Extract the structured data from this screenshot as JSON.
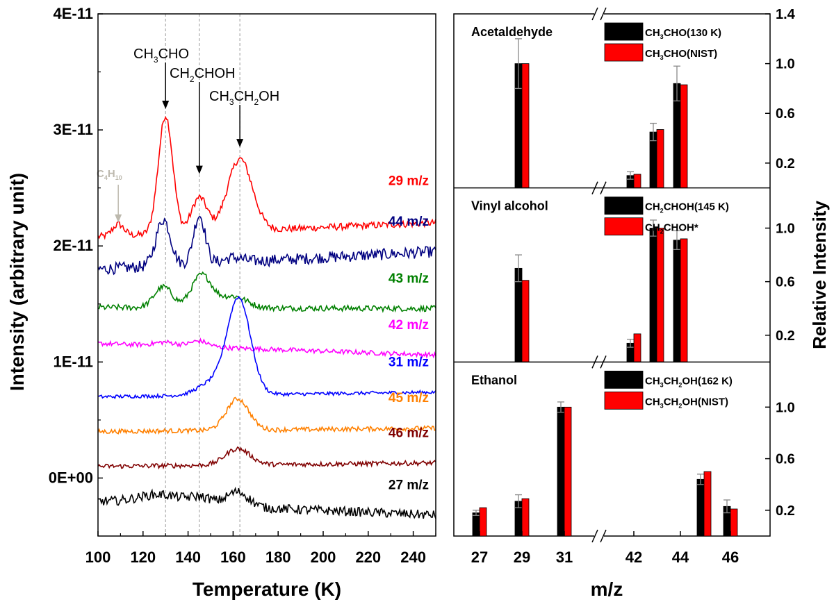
{
  "chart_data": [
    {
      "type": "line",
      "xlabel": "Temperature (K)",
      "ylabel": "Intensity (arbitrary unit)",
      "xlim": [
        100,
        250
      ],
      "ylim": [
        -5e-12,
        4e-11
      ],
      "xticks": [
        100,
        120,
        140,
        160,
        180,
        200,
        220,
        240
      ],
      "xtick_labels": [
        "100",
        "120",
        "140",
        "160",
        "180",
        "200",
        "220",
        "240"
      ],
      "yticks": [
        0,
        1e-11,
        2e-11,
        3e-11,
        4e-11
      ],
      "ytick_labels": [
        "0E+00",
        "1E-11",
        "2E-11",
        "3E-11",
        "4E-11"
      ],
      "reference_lines_x": [
        130,
        145,
        163
      ],
      "annotations": [
        {
          "label": "CH3CHO",
          "parts": [
            [
              "CH",
              "n"
            ],
            [
              "3",
              "sub"
            ],
            [
              "CHO",
              "n"
            ]
          ],
          "x": 130,
          "arrow_to": 3.18e-11,
          "color": "#000000"
        },
        {
          "label": "CH2CHOH",
          "parts": [
            [
              "CH",
              "n"
            ],
            [
              "2",
              "sub"
            ],
            [
              "CHOH",
              "n"
            ]
          ],
          "x": 145,
          "arrow_to": 2.62e-11,
          "color": "#000000"
        },
        {
          "label": "CH3CH2OH",
          "parts": [
            [
              "CH",
              "n"
            ],
            [
              "3",
              "sub"
            ],
            [
              "CH",
              "n"
            ],
            [
              "2",
              "sub"
            ],
            [
              "OH",
              "n"
            ]
          ],
          "x": 163,
          "arrow_to": 2.85e-11,
          "color": "#000000"
        },
        {
          "label": "C4H10",
          "parts": [
            [
              "C",
              "n"
            ],
            [
              "4",
              "sub"
            ],
            [
              "H",
              "n"
            ],
            [
              "10",
              "sub"
            ]
          ],
          "x": 109,
          "arrow_to": 2.2e-11,
          "color": "#bdb9ae"
        }
      ],
      "series": [
        {
          "name": "29 m/z",
          "color": "#ff0000",
          "baseline_start": 2.08e-11,
          "baseline_end": 2.2e-11,
          "noise": 3e-13,
          "peaks": [
            [
              109,
              1e-12,
              2.5
            ],
            [
              130,
              1.02e-11,
              3.2
            ],
            [
              145,
              3e-12,
              3.5
            ],
            [
              163,
              6.2e-12,
              5.5
            ]
          ]
        },
        {
          "name": "44 m/z",
          "color": "#000080",
          "baseline_start": 1.8e-11,
          "baseline_end": 1.95e-11,
          "noise": 5e-13,
          "peaks": [
            [
              129,
              4e-12,
              3.2
            ],
            [
              145,
              4.2e-12,
              2.6
            ],
            [
              160,
              4e-13,
              4
            ]
          ]
        },
        {
          "name": "43 m/z",
          "color": "#008000",
          "baseline_start": 1.47e-11,
          "baseline_end": 1.46e-11,
          "noise": 2.5e-13,
          "peaks": [
            [
              129,
              1.8e-12,
              4
            ],
            [
              146,
              2.8e-12,
              4.5
            ],
            [
              160,
              1e-12,
              6
            ]
          ]
        },
        {
          "name": "42 m/z",
          "color": "#ff00ff",
          "baseline_start": 1.16e-11,
          "baseline_end": 1.06e-11,
          "noise": 2e-13,
          "peaks": [
            [
              130,
              3e-13,
              5
            ],
            [
              145,
              5e-13,
              4
            ]
          ]
        },
        {
          "name": "31 m/z",
          "color": "#0000ff",
          "baseline_start": 7e-12,
          "baseline_end": 7.4e-12,
          "noise": 1.5e-13,
          "peaks": [
            [
              162.5,
              8.3e-12,
              5.2
            ],
            [
              150,
              1e-12,
              6
            ]
          ]
        },
        {
          "name": "45 m/z",
          "color": "#ff8000",
          "baseline_start": 4e-12,
          "baseline_end": 4.3e-12,
          "noise": 2e-13,
          "peaks": [
            [
              162,
              2.7e-12,
              5
            ]
          ]
        },
        {
          "name": "46 m/z",
          "color": "#800000",
          "baseline_start": 1e-12,
          "baseline_end": 1.3e-12,
          "noise": 2e-13,
          "peaks": [
            [
              162,
              1.4e-12,
              5.5
            ]
          ]
        },
        {
          "name": "27 m/z",
          "color": "#000000",
          "baseline_start": -2e-12,
          "baseline_end": -3.2e-12,
          "noise": 4e-13,
          "peaks": [
            [
              128,
              8e-13,
              10
            ],
            [
              146,
              6e-13,
              5
            ],
            [
              162,
              1.3e-12,
              5
            ]
          ]
        }
      ]
    },
    {
      "type": "bar",
      "xlabel": "m/z",
      "ylabel": "Relative Intensity",
      "categories": [
        "27",
        "29",
        "31",
        "42",
        "43",
        "44",
        "45",
        "46"
      ],
      "xtick_labels": [
        "27",
        "29",
        "31",
        "42",
        "44",
        "46"
      ],
      "panels": [
        {
          "title": "Acetaldehyde",
          "ylim": [
            0,
            1.4
          ],
          "yticks": [
            0.2,
            0.6,
            1.0,
            1.4
          ],
          "ytick_labels": [
            "0.2",
            "0.6",
            "1.0",
            "1.4"
          ],
          "series": [
            {
              "name": "CH3CHO(130 K)",
              "parts": [
                [
                  "CH",
                  "n"
                ],
                [
                  "3",
                  "sub"
                ],
                [
                  "CHO(130 K)",
                  "n"
                ]
              ],
              "color": "#000000",
              "values": {
                "29": 1.0,
                "42": 0.1,
                "43": 0.45,
                "44": 0.84
              },
              "errors": {
                "29": 0.2,
                "42": 0.03,
                "43": 0.07,
                "44": 0.14
              }
            },
            {
              "name": "CH3CHO(NIST)",
              "parts": [
                [
                  "CH",
                  "n"
                ],
                [
                  "3",
                  "sub"
                ],
                [
                  "CHO(NIST)",
                  "n"
                ]
              ],
              "color": "#ff0000",
              "values": {
                "29": 1.0,
                "42": 0.11,
                "43": 0.47,
                "44": 0.83
              }
            }
          ]
        },
        {
          "title": "Vinyl alcohol",
          "ylim": [
            0,
            1.3
          ],
          "yticks": [
            0.2,
            0.6,
            1.0
          ],
          "ytick_labels": [
            "0.2",
            "0.6",
            "1.0"
          ],
          "series": [
            {
              "name": "CH2CHOH(145 K)",
              "parts": [
                [
                  "CH",
                  "n"
                ],
                [
                  "2",
                  "sub"
                ],
                [
                  "CHOH(145 K)",
                  "n"
                ]
              ],
              "color": "#000000",
              "values": {
                "29": 0.7,
                "42": 0.14,
                "43": 1.0,
                "44": 0.91
              },
              "errors": {
                "29": 0.1,
                "42": 0.03,
                "43": 0.06,
                "44": 0.07
              }
            },
            {
              "name": "CH2CHOH*",
              "parts": [
                [
                  "CH",
                  "n"
                ],
                [
                  "2",
                  "sub"
                ],
                [
                  "CHOH*",
                  "n"
                ]
              ],
              "color": "#ff0000",
              "values": {
                "29": 0.61,
                "42": 0.21,
                "43": 1.0,
                "44": 0.92
              }
            }
          ]
        },
        {
          "title": "Ethanol",
          "ylim": [
            0,
            1.35
          ],
          "yticks": [
            0.2,
            0.6,
            1.0
          ],
          "ytick_labels": [
            "0.2",
            "0.6",
            "1.0"
          ],
          "series": [
            {
              "name": "CH3CH2OH(162 K)",
              "parts": [
                [
                  "CH",
                  "n"
                ],
                [
                  "3",
                  "sub"
                ],
                [
                  "CH",
                  "n"
                ],
                [
                  "2",
                  "sub"
                ],
                [
                  "OH(162 K)",
                  "n"
                ]
              ],
              "color": "#000000",
              "values": {
                "27": 0.18,
                "29": 0.27,
                "31": 1.0,
                "45": 0.44,
                "46": 0.23
              },
              "errors": {
                "27": 0.02,
                "29": 0.05,
                "31": 0.04,
                "45": 0.04,
                "46": 0.05
              }
            },
            {
              "name": "CH3CH2OH(NIST)",
              "parts": [
                [
                  "CH",
                  "n"
                ],
                [
                  "3",
                  "sub"
                ],
                [
                  "CH",
                  "n"
                ],
                [
                  "2",
                  "sub"
                ],
                [
                  "OH(NIST)",
                  "n"
                ]
              ],
              "color": "#ff0000",
              "values": {
                "27": 0.22,
                "29": 0.29,
                "31": 1.0,
                "45": 0.5,
                "46": 0.21
              }
            }
          ]
        }
      ]
    }
  ]
}
